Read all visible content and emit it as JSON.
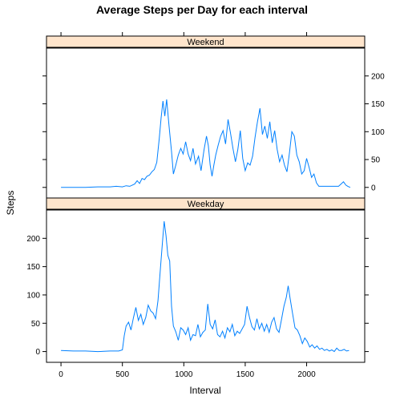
{
  "chart_data": {
    "type": "line",
    "title": "Average Steps per Day for each interval",
    "xlabel": "Interval",
    "ylabel": "Steps",
    "xlim": [
      -118,
      2473
    ],
    "ylim": [
      -19,
      250
    ],
    "x_ticks": [
      0,
      500,
      1000,
      1500,
      2000
    ],
    "x_tick_labels": [
      "0",
      "500",
      "1000",
      "1500",
      "2000"
    ],
    "y_ticks": [
      0,
      50,
      100,
      150,
      200
    ],
    "y_tick_labels": [
      "0",
      "50",
      "100",
      "150",
      "200"
    ],
    "grid": false,
    "colors": {
      "line": "#0080ff",
      "strip": "#ffe5cc"
    },
    "panels": [
      {
        "strip": "Weekend",
        "points": [
          [
            0,
            0
          ],
          [
            100,
            0
          ],
          [
            200,
            0
          ],
          [
            300,
            1
          ],
          [
            400,
            1
          ],
          [
            450,
            2
          ],
          [
            500,
            1
          ],
          [
            530,
            3
          ],
          [
            560,
            2
          ],
          [
            600,
            6
          ],
          [
            620,
            12
          ],
          [
            640,
            7
          ],
          [
            660,
            16
          ],
          [
            680,
            14
          ],
          [
            700,
            20
          ],
          [
            720,
            22
          ],
          [
            740,
            28
          ],
          [
            760,
            32
          ],
          [
            780,
            45
          ],
          [
            800,
            88
          ],
          [
            815,
            125
          ],
          [
            830,
            155
          ],
          [
            845,
            128
          ],
          [
            860,
            158
          ],
          [
            880,
            110
          ],
          [
            900,
            64
          ],
          [
            915,
            24
          ],
          [
            935,
            40
          ],
          [
            955,
            58
          ],
          [
            975,
            70
          ],
          [
            995,
            60
          ],
          [
            1015,
            82
          ],
          [
            1035,
            60
          ],
          [
            1055,
            48
          ],
          [
            1075,
            70
          ],
          [
            1095,
            42
          ],
          [
            1120,
            56
          ],
          [
            1140,
            30
          ],
          [
            1165,
            68
          ],
          [
            1185,
            92
          ],
          [
            1200,
            75
          ],
          [
            1215,
            40
          ],
          [
            1230,
            20
          ],
          [
            1245,
            40
          ],
          [
            1260,
            58
          ],
          [
            1280,
            76
          ],
          [
            1300,
            92
          ],
          [
            1320,
            102
          ],
          [
            1340,
            78
          ],
          [
            1360,
            122
          ],
          [
            1380,
            98
          ],
          [
            1400,
            70
          ],
          [
            1420,
            46
          ],
          [
            1440,
            68
          ],
          [
            1460,
            102
          ],
          [
            1480,
            52
          ],
          [
            1500,
            30
          ],
          [
            1520,
            44
          ],
          [
            1540,
            40
          ],
          [
            1560,
            56
          ],
          [
            1580,
            90
          ],
          [
            1600,
            118
          ],
          [
            1620,
            142
          ],
          [
            1640,
            95
          ],
          [
            1660,
            110
          ],
          [
            1680,
            88
          ],
          [
            1700,
            118
          ],
          [
            1720,
            80
          ],
          [
            1740,
            102
          ],
          [
            1760,
            68
          ],
          [
            1780,
            46
          ],
          [
            1800,
            58
          ],
          [
            1820,
            40
          ],
          [
            1840,
            28
          ],
          [
            1860,
            62
          ],
          [
            1880,
            100
          ],
          [
            1900,
            92
          ],
          [
            1920,
            58
          ],
          [
            1940,
            46
          ],
          [
            1960,
            24
          ],
          [
            1980,
            30
          ],
          [
            2000,
            52
          ],
          [
            2020,
            36
          ],
          [
            2040,
            18
          ],
          [
            2060,
            24
          ],
          [
            2080,
            8
          ],
          [
            2100,
            2
          ],
          [
            2140,
            2
          ],
          [
            2180,
            2
          ],
          [
            2220,
            2
          ],
          [
            2260,
            2
          ],
          [
            2280,
            6
          ],
          [
            2300,
            10
          ],
          [
            2320,
            4
          ],
          [
            2335,
            2
          ],
          [
            2355,
            0
          ]
        ]
      },
      {
        "strip": "Weekday",
        "points": [
          [
            0,
            2
          ],
          [
            100,
            1
          ],
          [
            200,
            1
          ],
          [
            300,
            0
          ],
          [
            400,
            1
          ],
          [
            470,
            1
          ],
          [
            500,
            3
          ],
          [
            515,
            28
          ],
          [
            530,
            45
          ],
          [
            550,
            52
          ],
          [
            570,
            38
          ],
          [
            590,
            60
          ],
          [
            610,
            78
          ],
          [
            630,
            55
          ],
          [
            650,
            66
          ],
          [
            670,
            48
          ],
          [
            690,
            60
          ],
          [
            710,
            82
          ],
          [
            730,
            72
          ],
          [
            750,
            68
          ],
          [
            770,
            58
          ],
          [
            790,
            90
          ],
          [
            810,
            148
          ],
          [
            825,
            190
          ],
          [
            840,
            230
          ],
          [
            855,
            205
          ],
          [
            870,
            170
          ],
          [
            885,
            160
          ],
          [
            900,
            80
          ],
          [
            915,
            45
          ],
          [
            935,
            35
          ],
          [
            955,
            20
          ],
          [
            975,
            42
          ],
          [
            995,
            38
          ],
          [
            1015,
            30
          ],
          [
            1035,
            42
          ],
          [
            1055,
            20
          ],
          [
            1075,
            30
          ],
          [
            1095,
            28
          ],
          [
            1115,
            48
          ],
          [
            1135,
            26
          ],
          [
            1155,
            34
          ],
          [
            1175,
            38
          ],
          [
            1195,
            84
          ],
          [
            1215,
            48
          ],
          [
            1235,
            40
          ],
          [
            1255,
            56
          ],
          [
            1275,
            30
          ],
          [
            1295,
            26
          ],
          [
            1315,
            36
          ],
          [
            1335,
            24
          ],
          [
            1355,
            42
          ],
          [
            1375,
            35
          ],
          [
            1395,
            48
          ],
          [
            1415,
            28
          ],
          [
            1435,
            36
          ],
          [
            1455,
            32
          ],
          [
            1475,
            40
          ],
          [
            1495,
            48
          ],
          [
            1515,
            80
          ],
          [
            1535,
            60
          ],
          [
            1555,
            44
          ],
          [
            1575,
            38
          ],
          [
            1595,
            58
          ],
          [
            1615,
            40
          ],
          [
            1635,
            50
          ],
          [
            1655,
            36
          ],
          [
            1675,
            48
          ],
          [
            1695,
            34
          ],
          [
            1715,
            52
          ],
          [
            1735,
            60
          ],
          [
            1755,
            40
          ],
          [
            1775,
            34
          ],
          [
            1795,
            56
          ],
          [
            1815,
            80
          ],
          [
            1835,
            96
          ],
          [
            1850,
            116
          ],
          [
            1865,
            95
          ],
          [
            1885,
            68
          ],
          [
            1905,
            42
          ],
          [
            1925,
            38
          ],
          [
            1945,
            28
          ],
          [
            1965,
            14
          ],
          [
            1985,
            24
          ],
          [
            2005,
            18
          ],
          [
            2025,
            8
          ],
          [
            2045,
            12
          ],
          [
            2065,
            6
          ],
          [
            2085,
            10
          ],
          [
            2105,
            4
          ],
          [
            2125,
            6
          ],
          [
            2145,
            2
          ],
          [
            2165,
            4
          ],
          [
            2185,
            1
          ],
          [
            2205,
            3
          ],
          [
            2225,
            0
          ],
          [
            2245,
            6
          ],
          [
            2265,
            2
          ],
          [
            2285,
            2
          ],
          [
            2305,
            4
          ],
          [
            2325,
            1
          ],
          [
            2345,
            2
          ]
        ]
      }
    ]
  }
}
